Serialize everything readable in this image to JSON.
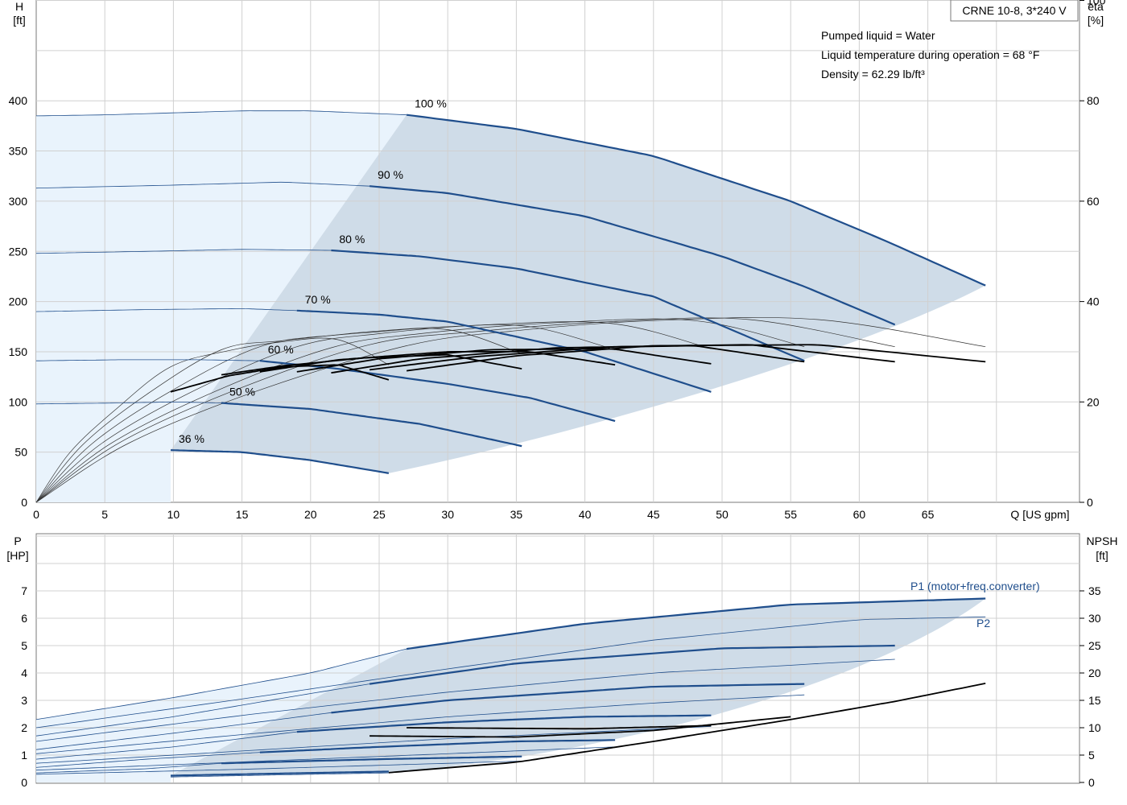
{
  "chart_data": [
    {
      "type": "line",
      "product": "CRNE 10-8, 3*240 V",
      "notes": [
        "Pumped liquid = Water",
        "Liquid temperature during operation = 68 °F",
        "Density = 62.29 lb/ft³"
      ],
      "xlabel": "Q [US gpm]",
      "ylabel_top": "H",
      "ylabel_bottom": "[ft]",
      "y2label_top": "eta",
      "y2label_bottom": "[%]",
      "xlim": [
        0,
        70
      ],
      "ylim": [
        0,
        400
      ],
      "y2lim": [
        0,
        100
      ],
      "xticks": [
        0,
        5,
        10,
        15,
        20,
        25,
        30,
        35,
        40,
        45,
        50,
        55,
        60,
        65
      ],
      "yticks": [
        0,
        50,
        100,
        150,
        200,
        250,
        300,
        350,
        400
      ],
      "y2ticks": [
        0,
        20,
        40,
        60,
        80,
        100
      ],
      "grid": true,
      "colors": {
        "curve": "#1f4e8c",
        "light_area": "#e9f3fc",
        "dark_area": "#cfdce8",
        "eff": "#000000",
        "grid": "#d0d0d0"
      },
      "speed_curves": [
        {
          "label": "100 %",
          "x": [
            0,
            5,
            10,
            15,
            20,
            27,
            35,
            45,
            55,
            62,
            69.2
          ],
          "y": [
            385,
            386,
            388,
            390,
            390,
            386,
            372,
            345,
            300,
            260,
            216
          ]
        },
        {
          "label": "90 %",
          "x": [
            0,
            10,
            18,
            24.3,
            30,
            40,
            50,
            56,
            62.6
          ],
          "y": [
            313,
            316,
            319,
            315,
            308,
            285,
            245,
            215,
            177
          ]
        },
        {
          "label": "80 %",
          "x": [
            0,
            8,
            15,
            21.5,
            28,
            35,
            45,
            56
          ],
          "y": [
            248,
            250,
            252,
            251,
            245,
            233,
            205,
            141
          ]
        },
        {
          "label": "70 %",
          "x": [
            0,
            8,
            15,
            19,
            25,
            30,
            40,
            49.2
          ],
          "y": [
            190,
            192,
            193,
            191,
            187,
            180,
            150,
            110
          ]
        },
        {
          "label": "60 %",
          "x": [
            0,
            6,
            12,
            16.3,
            22,
            30,
            36,
            42.2
          ],
          "y": [
            141,
            142,
            142,
            141,
            133,
            118,
            104,
            81
          ]
        },
        {
          "label": "50 %",
          "x": [
            0,
            6,
            10,
            13.5,
            20,
            28,
            35.4
          ],
          "y": [
            98,
            99,
            100,
            99,
            93,
            78,
            56
          ]
        },
        {
          "label": "36 %",
          "x": [
            9.8,
            15,
            20,
            25.7
          ],
          "y": [
            52,
            50,
            42,
            29
          ]
        }
      ],
      "efficiency_curves": [
        {
          "x": [
            9.8,
            14,
            18,
            22,
            25.7
          ],
          "y": [
            110,
            126,
            135,
            137,
            122
          ]
        },
        {
          "x": [
            13.5,
            18,
            24,
            30,
            35.4
          ],
          "y": [
            127,
            136,
            144,
            147,
            133
          ]
        },
        {
          "x": [
            16.3,
            22,
            30,
            36,
            42.2
          ],
          "y": [
            130,
            142,
            150,
            150,
            137
          ]
        },
        {
          "x": [
            19,
            25,
            33,
            42,
            49.2
          ],
          "y": [
            130,
            143,
            152,
            153,
            138
          ]
        },
        {
          "x": [
            21.5,
            28,
            38,
            48,
            56
          ],
          "y": [
            129,
            143,
            154,
            156,
            140
          ]
        },
        {
          "x": [
            24.3,
            32,
            42,
            52,
            62.6
          ],
          "y": [
            132,
            145,
            155,
            157,
            140
          ]
        },
        {
          "x": [
            27,
            35,
            45,
            57,
            69.2
          ],
          "y": [
            131,
            146,
            156,
            157,
            140
          ]
        }
      ]
    },
    {
      "type": "line",
      "ylabel_top": "P",
      "ylabel_bottom": "[HP]",
      "y2label_top": "NPSH",
      "y2label_bottom": "[ft]",
      "xlim": [
        0,
        70
      ],
      "ylim": [
        0,
        7.2
      ],
      "y2lim": [
        0,
        36
      ],
      "yticks": [
        0,
        1,
        2,
        3,
        4,
        5,
        6,
        7
      ],
      "y2ticks": [
        0,
        5,
        10,
        15,
        20,
        25,
        30,
        35
      ],
      "grid": true,
      "series_labels": {
        "p1": "P1 (motor+freq.converter)",
        "p2": "P2"
      },
      "p1_curves": [
        {
          "x": [
            0,
            10,
            20,
            27,
            40,
            55,
            69.2
          ],
          "y": [
            2.3,
            3.1,
            4.0,
            4.88,
            5.8,
            6.5,
            6.72
          ]
        },
        {
          "x": [
            0,
            10,
            20,
            24.3,
            35,
            50,
            62.6
          ],
          "y": [
            1.7,
            2.4,
            3.25,
            3.6,
            4.35,
            4.9,
            5.0
          ]
        },
        {
          "x": [
            0,
            10,
            21.5,
            30,
            45,
            56
          ],
          "y": [
            1.2,
            1.8,
            2.55,
            3.0,
            3.5,
            3.6
          ]
        },
        {
          "x": [
            0,
            10,
            19,
            30,
            40,
            49.2
          ],
          "y": [
            0.85,
            1.3,
            1.85,
            2.2,
            2.4,
            2.45
          ]
        },
        {
          "x": [
            0,
            8,
            16.3,
            25,
            35,
            42.2
          ],
          "y": [
            0.55,
            0.85,
            1.1,
            1.3,
            1.5,
            1.55
          ]
        },
        {
          "x": [
            0,
            8,
            13.5,
            25,
            35.4
          ],
          "y": [
            0.35,
            0.5,
            0.7,
            0.85,
            0.95
          ]
        },
        {
          "x": [
            9.8,
            18,
            25.7
          ],
          "y": [
            0.25,
            0.33,
            0.4
          ]
        }
      ],
      "p2_curves": [
        {
          "x": [
            0,
            15,
            30,
            45,
            60,
            69.2
          ],
          "y": [
            2.0,
            3.05,
            4.15,
            5.2,
            5.95,
            6.05
          ]
        },
        {
          "x": [
            0,
            15,
            30,
            45,
            62.6
          ],
          "y": [
            1.5,
            2.45,
            3.3,
            4.0,
            4.5
          ]
        },
        {
          "x": [
            0,
            15,
            30,
            45,
            56
          ],
          "y": [
            1.05,
            1.75,
            2.4,
            2.9,
            3.2
          ]
        },
        {
          "x": [
            0,
            15,
            30,
            49.2
          ],
          "y": [
            0.7,
            1.15,
            1.6,
            2.05
          ]
        },
        {
          "x": [
            0,
            15,
            30,
            42.2
          ],
          "y": [
            0.45,
            0.75,
            1.05,
            1.3
          ]
        },
        {
          "x": [
            0,
            15,
            30,
            35.4
          ],
          "y": [
            0.3,
            0.48,
            0.7,
            0.78
          ]
        },
        {
          "x": [
            9.8,
            18,
            25.7
          ],
          "y": [
            0.2,
            0.28,
            0.35
          ]
        }
      ],
      "npsh_curves": [
        {
          "x": [
            25.7,
            35,
            45,
            55,
            62.6,
            69.2
          ],
          "y": [
            1.8,
            3.7,
            7.5,
            11.5,
            14.8,
            18.1
          ]
        },
        {
          "x": [
            24.3,
            35,
            45,
            55
          ],
          "y": [
            8.5,
            8.3,
            9.5,
            12.0
          ]
        },
        {
          "x": [
            27,
            40,
            49.2
          ],
          "y": [
            10.0,
            9.8,
            10.4
          ]
        }
      ]
    }
  ]
}
